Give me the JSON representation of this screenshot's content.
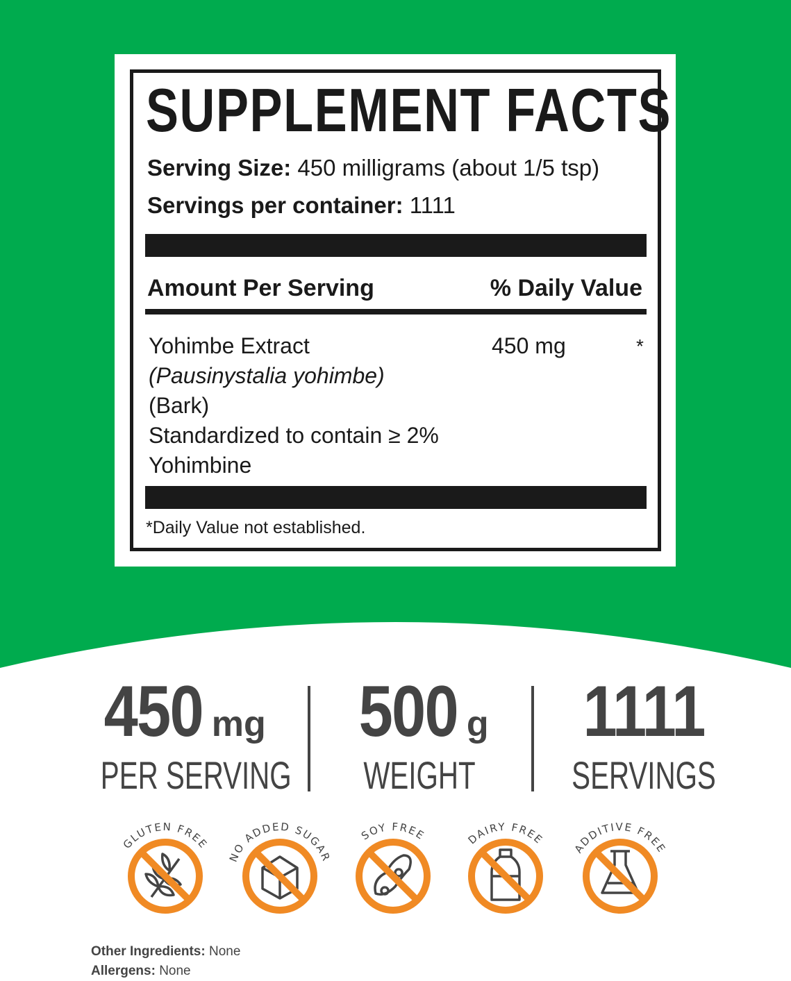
{
  "colors": {
    "background_green": "#00ab4e",
    "label_black": "#1a1a1a",
    "badge_orange": "#f08a24",
    "stat_gray": "#444444"
  },
  "facts": {
    "title": "SUPPLEMENT FACTS",
    "serving_size_label": "Serving Size:",
    "serving_size_value": "450 milligrams (about 1/5 tsp)",
    "servings_label": "Servings per container:",
    "servings_value": "1111",
    "amount_header": "Amount Per Serving",
    "dv_header": "% Daily Value",
    "ingredient": {
      "name": "Yohimbe Extract",
      "latin": "(Pausinystalia yohimbe)",
      "part": "(Bark)",
      "standard": "Standardized to contain ≥ 2%",
      "standard2": "Yohimbine",
      "amount": "450 mg",
      "dv": "*"
    },
    "footnote": "*Daily Value not established."
  },
  "stats": [
    {
      "value": "450",
      "unit": "mg",
      "label": "PER SERVING"
    },
    {
      "value": "500",
      "unit": "g",
      "label": "WEIGHT"
    },
    {
      "value": "1111",
      "unit": "",
      "label": "SERVINGS"
    }
  ],
  "badges": [
    {
      "label": "GLUTEN FREE",
      "icon": "wheat-icon"
    },
    {
      "label": "NO ADDED SUGAR",
      "icon": "sugar-cube-icon"
    },
    {
      "label": "SOY FREE",
      "icon": "soybean-icon"
    },
    {
      "label": "DAIRY FREE",
      "icon": "milk-bottle-icon"
    },
    {
      "label": "ADDITIVE FREE",
      "icon": "flask-icon"
    }
  ],
  "other": {
    "ingredients_label": "Other Ingredients:",
    "ingredients_value": "None",
    "allergens_label": "Allergens:",
    "allergens_value": "None"
  }
}
